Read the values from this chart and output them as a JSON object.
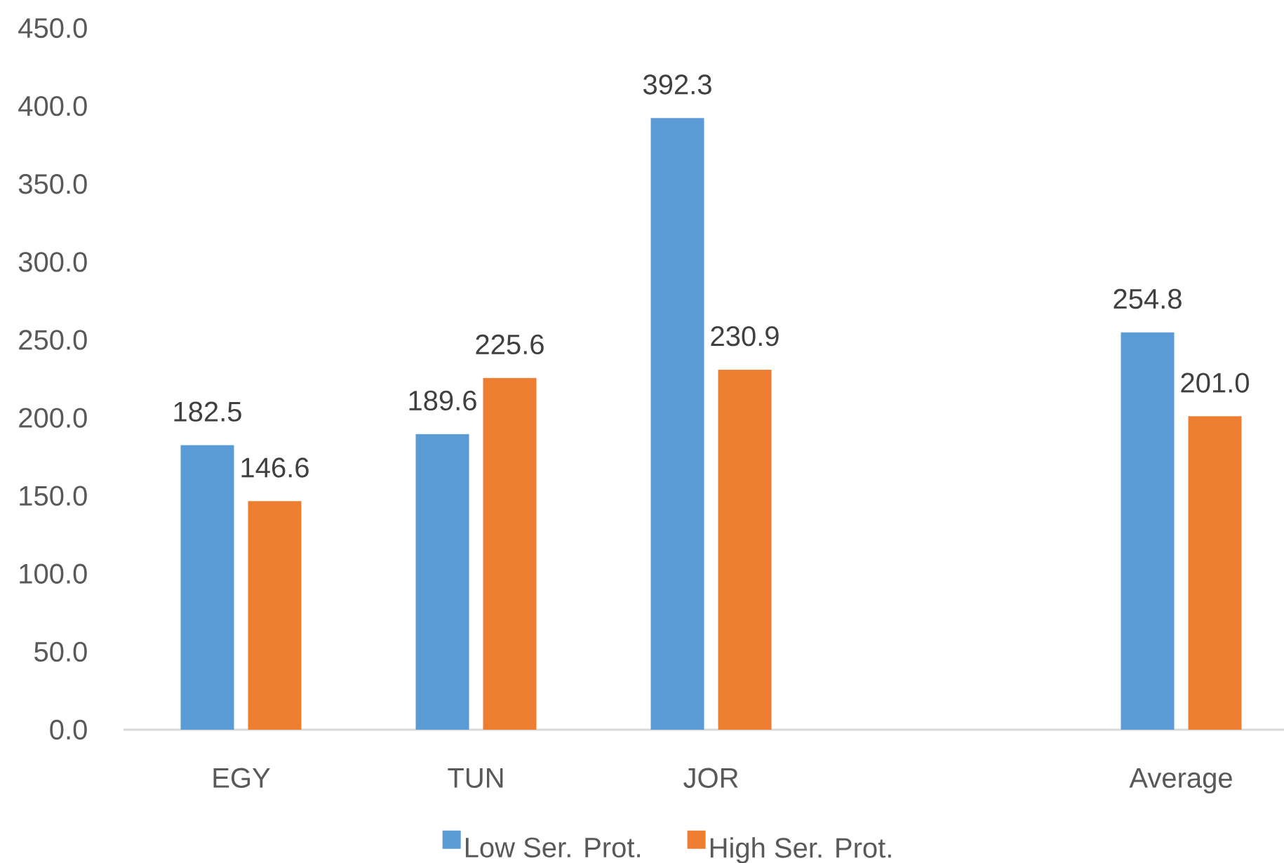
{
  "chart_data": {
    "type": "bar",
    "categories": [
      "EGY",
      "TUN",
      "JOR",
      null,
      "Average"
    ],
    "series": [
      {
        "name": "Low Ser. Prot.",
        "color": "#5b9bd5",
        "values": [
          182.5,
          189.6,
          392.3,
          null,
          254.8
        ],
        "value_labels": [
          "182.5",
          "189.6",
          "392.3",
          null,
          "254.8"
        ]
      },
      {
        "name": "High Ser. Prot.",
        "color": "#ed7d31",
        "values": [
          146.6,
          225.6,
          230.9,
          null,
          201.0
        ],
        "value_labels": [
          "146.6",
          "225.6",
          "230.9",
          null,
          "201.0"
        ]
      }
    ],
    "ylim": [
      0,
      450
    ],
    "yticks": [
      {
        "value": 0,
        "label": "0.0"
      },
      {
        "value": 50,
        "label": "50.0"
      },
      {
        "value": 100,
        "label": "100.0"
      },
      {
        "value": 150,
        "label": "150.0"
      },
      {
        "value": 200,
        "label": "200.0"
      },
      {
        "value": 250,
        "label": "250.0"
      },
      {
        "value": 300,
        "label": "300.0"
      },
      {
        "value": 350,
        "label": "350.0"
      },
      {
        "value": 400,
        "label": "400.0"
      },
      {
        "value": 450,
        "label": "450.0"
      }
    ],
    "legend": "bottom"
  }
}
